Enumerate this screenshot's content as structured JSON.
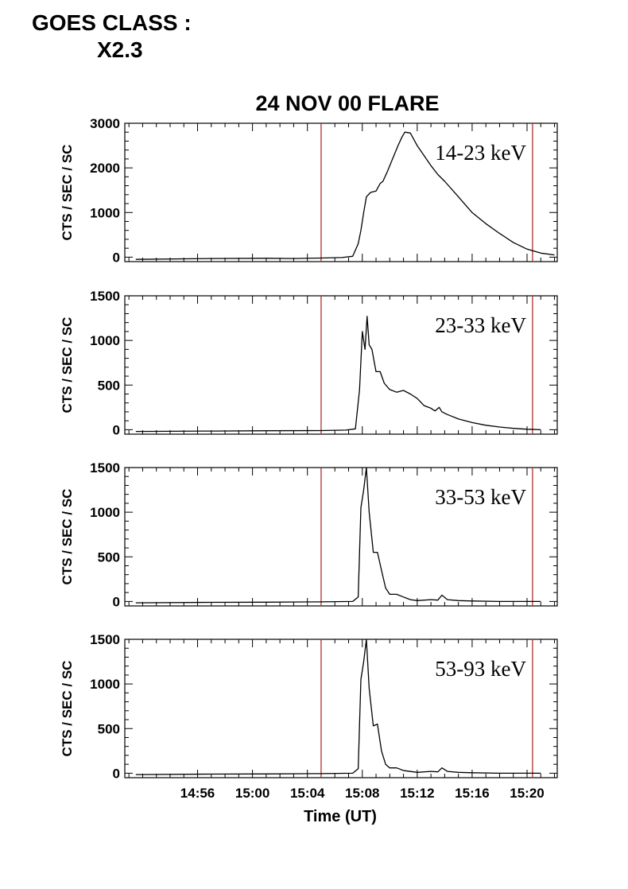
{
  "header": {
    "goes_label": "GOES CLASS :",
    "goes_class": "X2.3"
  },
  "chart_data": {
    "type": "line",
    "title": "24 NOV 00 FLARE",
    "xlabel": "Time (UT)",
    "x_tick_labels": [
      "14:56",
      "15:00",
      "15:04",
      "15:08",
      "15:12",
      "15:16",
      "15:20"
    ],
    "x_tick_values_min": [
      896,
      900,
      904,
      908,
      912,
      916,
      920
    ],
    "xlim_min": [
      890.7,
      922.2
    ],
    "interval_markers_min": [
      905.0,
      920.4
    ],
    "marker_color": "#b03030",
    "line_color": "#000000",
    "panels": [
      {
        "band": "14-23 keV",
        "ylabel": "CTS / SEC / SC",
        "ylim": [
          -100,
          3000
        ],
        "y_ticks": [
          0,
          1000,
          2000,
          3000
        ],
        "y_tick_labels": [
          "0",
          "1000",
          "2000",
          "3000"
        ],
        "x": [
          891.5,
          897,
          901,
          903,
          905,
          906.5,
          907.3,
          907.7,
          907.9,
          908.1,
          908.3,
          908.6,
          909,
          909.3,
          909.5,
          909.8,
          910.2,
          910.6,
          910.9,
          911.1,
          911.5,
          912,
          913,
          913.5,
          914,
          915,
          916,
          917,
          918,
          919,
          920,
          921,
          922
        ],
        "y": [
          -50,
          -30,
          -25,
          -30,
          -20,
          -10,
          20,
          300,
          600,
          1000,
          1350,
          1450,
          1480,
          1650,
          1700,
          1900,
          2200,
          2500,
          2700,
          2800,
          2780,
          2500,
          2050,
          1850,
          1700,
          1350,
          1000,
          750,
          530,
          330,
          180,
          90,
          50
        ]
      },
      {
        "band": "23-33 keV",
        "ylabel": "CTS / SEC / SC",
        "ylim": [
          -50,
          1500
        ],
        "y_ticks": [
          0,
          500,
          1000,
          1500
        ],
        "y_tick_labels": [
          "0",
          "500",
          "1000",
          "1500"
        ],
        "x": [
          891.5,
          897,
          901,
          905,
          906.8,
          907.5,
          907.8,
          908.0,
          908.2,
          908.35,
          908.5,
          908.7,
          909,
          909.3,
          909.6,
          910,
          910.5,
          911,
          911.5,
          912,
          912.5,
          913,
          913.3,
          913.6,
          913.8,
          914.2,
          915,
          916,
          917,
          918,
          919,
          920,
          921
        ],
        "y": [
          -20,
          -15,
          -12,
          -10,
          -5,
          10,
          450,
          1100,
          900,
          1270,
          950,
          900,
          650,
          650,
          520,
          450,
          420,
          440,
          400,
          350,
          270,
          240,
          210,
          250,
          200,
          170,
          120,
          80,
          50,
          30,
          15,
          5,
          0
        ]
      },
      {
        "band": "33-53 keV",
        "ylabel": "CTS / SEC / SC",
        "ylim": [
          -50,
          1500
        ],
        "y_ticks": [
          0,
          500,
          1000,
          1500
        ],
        "y_tick_labels": [
          "0",
          "500",
          "1000",
          "1500"
        ],
        "x": [
          891.5,
          897,
          901,
          905,
          907.3,
          907.7,
          907.9,
          908.1,
          908.3,
          908.5,
          908.8,
          909.1,
          909.4,
          909.7,
          910,
          910.5,
          911,
          911.5,
          912,
          913,
          913.5,
          913.8,
          914.2,
          915,
          916,
          918,
          920,
          921
        ],
        "y": [
          -15,
          -10,
          -8,
          -5,
          0,
          50,
          1050,
          1250,
          1500,
          1000,
          550,
          550,
          350,
          150,
          80,
          80,
          50,
          20,
          10,
          20,
          15,
          70,
          20,
          10,
          5,
          0,
          0,
          0
        ]
      },
      {
        "band": "53-93 keV",
        "ylabel": "CTS / SEC / SC",
        "ylim": [
          -50,
          1500
        ],
        "y_ticks": [
          0,
          500,
          1000,
          1500
        ],
        "y_tick_labels": [
          "0",
          "500",
          "1000",
          "1500"
        ],
        "x": [
          891.5,
          897,
          901,
          905,
          907.3,
          907.7,
          907.9,
          908.1,
          908.3,
          908.5,
          908.8,
          909.1,
          909.4,
          909.7,
          910,
          910.5,
          911,
          912,
          913,
          913.5,
          913.8,
          914.2,
          915,
          916,
          918,
          920,
          921
        ],
        "y": [
          -15,
          -10,
          -8,
          -5,
          0,
          50,
          1050,
          1250,
          1500,
          950,
          530,
          550,
          250,
          100,
          60,
          60,
          30,
          10,
          20,
          15,
          60,
          20,
          10,
          5,
          0,
          0,
          0
        ]
      }
    ]
  }
}
